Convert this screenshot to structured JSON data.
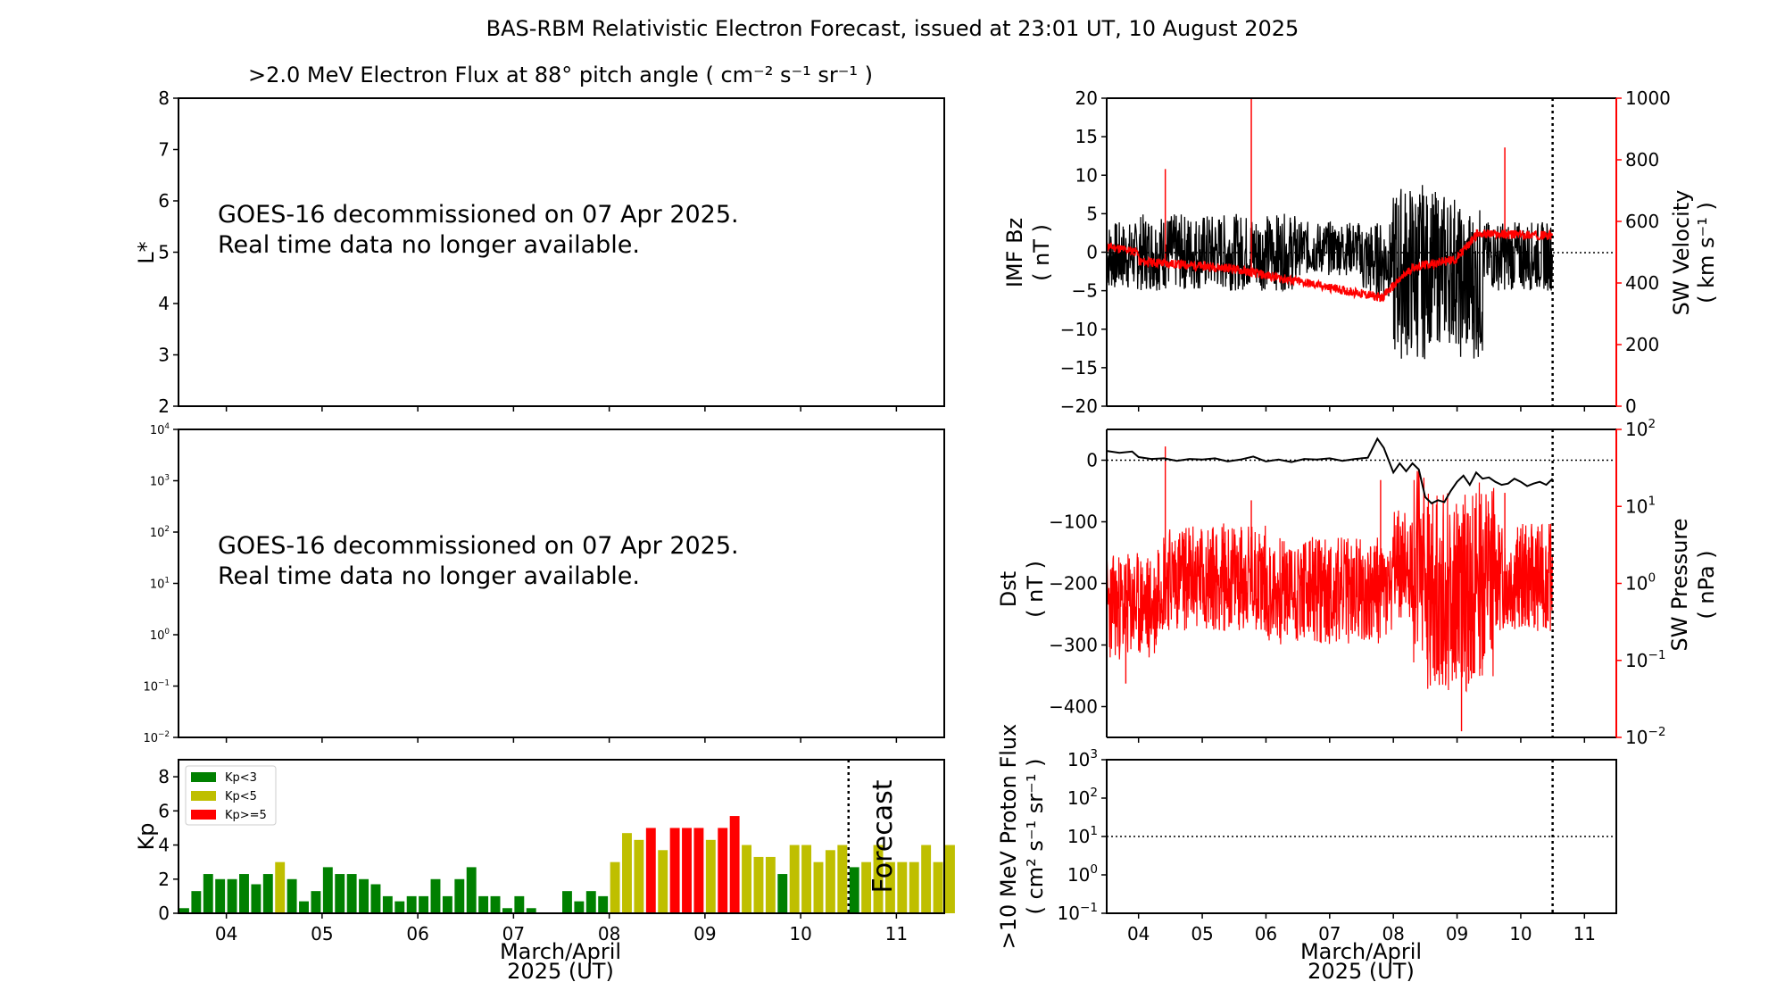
{
  "figure_title": "BAS-RBM Relativistic Electron Forecast, issued at 23:01 UT, 10 August 2025",
  "colors": {
    "axis": "#000000",
    "red": "#ff0000",
    "kp_low": "#008000",
    "kp_mid": "#bfbf00",
    "kp_high": "#ff0000",
    "forecast_text": "#c0c0c0"
  },
  "chart_data": [
    {
      "id": "flux_lstar",
      "type": "heatmap",
      "title": ">2.0 MeV Electron Flux at 88° pitch angle ( cm⁻² s⁻¹ sr⁻¹ )",
      "ylabel": "L*",
      "ylim": [
        2,
        8
      ],
      "yticks": [
        "2",
        "3",
        "4",
        "5",
        "6",
        "7",
        "8"
      ],
      "message": [
        "GOES-16 decommissioned on 07 Apr 2025.",
        "Real time data no longer available."
      ]
    },
    {
      "id": "flux_log",
      "type": "heatmap",
      "ylim": [
        0.01,
        10000
      ],
      "yticks": [
        {
          "base": "10",
          "exp": "4"
        },
        {
          "base": "10",
          "exp": "3"
        },
        {
          "base": "10",
          "exp": "2"
        },
        {
          "base": "10",
          "exp": "1"
        },
        {
          "base": "10",
          "exp": "0"
        },
        {
          "base": "10",
          "exp": "−1"
        },
        {
          "base": "10",
          "exp": "−2"
        }
      ],
      "message": [
        "GOES-16 decommissioned on 07 Apr 2025.",
        "Real time data no longer available."
      ]
    },
    {
      "id": "kp",
      "type": "bar",
      "ylabel": "Kp",
      "ylim": [
        0,
        9
      ],
      "yticks": [
        "0",
        "2",
        "4",
        "6",
        "8"
      ],
      "xticks": [
        "04",
        "05",
        "06",
        "07",
        "08",
        "09",
        "10",
        "11"
      ],
      "xlabel": [
        "March/April",
        "2025 (UT)"
      ],
      "forecast_label": "Forecast",
      "legend": [
        {
          "label": "Kp<3"
        },
        {
          "label": "Kp<5"
        },
        {
          "label": "Kp>=5"
        }
      ],
      "values": [
        0.3,
        1.3,
        2.3,
        2.0,
        2.0,
        2.3,
        1.7,
        2.3,
        3.0,
        2.0,
        0.7,
        1.3,
        2.7,
        2.3,
        2.3,
        2.0,
        1.7,
        1.0,
        0.7,
        1.0,
        1.0,
        2.0,
        1.0,
        2.0,
        2.7,
        1.0,
        1.0,
        0.3,
        1.0,
        0.3,
        0,
        0,
        1.3,
        0.7,
        1.3,
        1.0,
        3.0,
        4.7,
        4.3,
        5.0,
        3.7,
        5.0,
        5.0,
        5.0,
        4.3,
        5.0,
        5.7,
        4.0,
        3.3,
        3.3,
        2.3,
        4.0,
        4.0,
        3.0,
        3.7,
        4.0,
        2.7,
        3.0,
        4.0,
        3.0,
        3.0,
        3.0,
        4.0,
        3.0,
        4.0
      ],
      "forecast_start": 10.5
    },
    {
      "id": "imf_bz_sw_velocity",
      "type": "line",
      "ylabel": "IMF Bz",
      "yunit": "( nT )",
      "ylim": [
        -20,
        20
      ],
      "yticks": [
        "−20",
        "−15",
        "−10",
        "−5",
        "0",
        "5",
        "10",
        "15",
        "20"
      ],
      "y2label": "SW Velocity",
      "y2unit": "( km s⁻¹ )",
      "y2lim": [
        0,
        1000
      ],
      "y2ticks": [
        "0",
        "200",
        "400",
        "600",
        "800",
        "1000"
      ],
      "now": 10.5
    },
    {
      "id": "dst_sw_pressure",
      "type": "line",
      "ylabel": "Dst",
      "yunit": "( nT )",
      "ylim": [
        -450,
        50
      ],
      "yticks": [
        "−400",
        "−300",
        "−200",
        "−100",
        "0"
      ],
      "y2label": "SW Pressure",
      "y2unit": "( nPa )",
      "y2lim": [
        0.01,
        100
      ],
      "y2ticks": [
        {
          "base": "10",
          "exp": "−2"
        },
        {
          "base": "10",
          "exp": "−1"
        },
        {
          "base": "10",
          "exp": "0"
        },
        {
          "base": "10",
          "exp": "1"
        },
        {
          "base": "10",
          "exp": "2"
        }
      ],
      "dst": [
        [
          3.5,
          15
        ],
        [
          3.7,
          12
        ],
        [
          3.9,
          14
        ],
        [
          4.0,
          5
        ],
        [
          4.2,
          2
        ],
        [
          4.4,
          3
        ],
        [
          4.6,
          -1
        ],
        [
          4.8,
          2
        ],
        [
          5.0,
          1
        ],
        [
          5.2,
          3
        ],
        [
          5.4,
          -2
        ],
        [
          5.6,
          1
        ],
        [
          5.8,
          6
        ],
        [
          6.0,
          -2
        ],
        [
          6.2,
          1
        ],
        [
          6.4,
          -3
        ],
        [
          6.6,
          2
        ],
        [
          6.8,
          1
        ],
        [
          7.0,
          3
        ],
        [
          7.2,
          -1
        ],
        [
          7.4,
          2
        ],
        [
          7.6,
          4
        ],
        [
          7.75,
          35
        ],
        [
          7.85,
          20
        ],
        [
          8.0,
          -20
        ],
        [
          8.1,
          -5
        ],
        [
          8.2,
          -18
        ],
        [
          8.3,
          -5
        ],
        [
          8.4,
          -15
        ],
        [
          8.5,
          -60
        ],
        [
          8.6,
          -70
        ],
        [
          8.7,
          -65
        ],
        [
          8.8,
          -68
        ],
        [
          8.9,
          -50
        ],
        [
          9.0,
          -35
        ],
        [
          9.1,
          -25
        ],
        [
          9.2,
          -40
        ],
        [
          9.3,
          -20
        ],
        [
          9.4,
          -30
        ],
        [
          9.5,
          -28
        ],
        [
          9.6,
          -35
        ],
        [
          9.7,
          -40
        ],
        [
          9.8,
          -38
        ],
        [
          9.9,
          -30
        ],
        [
          10.0,
          -35
        ],
        [
          10.1,
          -42
        ],
        [
          10.2,
          -38
        ],
        [
          10.3,
          -35
        ],
        [
          10.4,
          -40
        ],
        [
          10.5,
          -30
        ]
      ],
      "now": 10.5
    },
    {
      "id": "proton_flux",
      "type": "line",
      "ylabel": ">10 MeV Proton Flux",
      "yunit": "( cm² s⁻¹ sr⁻¹ )",
      "ylim": [
        0.1,
        1000
      ],
      "yticks": [
        {
          "base": "10",
          "exp": "−1"
        },
        {
          "base": "10",
          "exp": "0"
        },
        {
          "base": "10",
          "exp": "1"
        },
        {
          "base": "10",
          "exp": "2"
        },
        {
          "base": "10",
          "exp": "3"
        }
      ],
      "xticks": [
        "04",
        "05",
        "06",
        "07",
        "08",
        "09",
        "10",
        "11"
      ],
      "xlabel": [
        "March/April",
        "2025 (UT)"
      ],
      "threshold": 10,
      "now": 10.5
    }
  ]
}
